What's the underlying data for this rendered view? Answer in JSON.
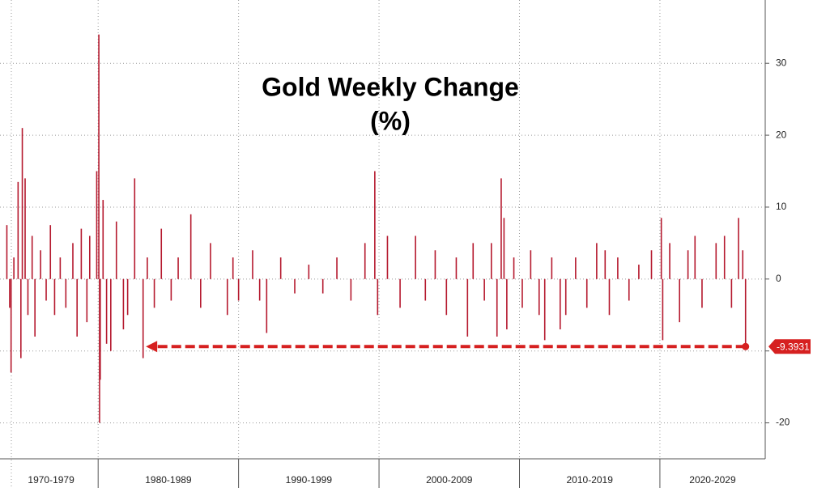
{
  "chart_data": {
    "type": "bar",
    "title": "Gold Weekly Change",
    "subtitle": "(%)",
    "x": [
      1973.5,
      1973.7,
      1973.8,
      1974.0,
      1974.3,
      1974.5,
      1974.6,
      1974.8,
      1975.0,
      1975.3,
      1975.5,
      1975.9,
      1976.3,
      1976.6,
      1976.9,
      1977.3,
      1977.7,
      1978.2,
      1978.5,
      1978.8,
      1979.2,
      1979.4,
      1979.9,
      1980.05,
      1980.1,
      1980.15,
      1980.35,
      1980.6,
      1980.9,
      1981.3,
      1981.8,
      1982.1,
      1982.6,
      1983.2,
      1983.5,
      1984.0,
      1984.5,
      1985.2,
      1985.7,
      1986.6,
      1987.3,
      1988.0,
      1989.2,
      1989.6,
      1990.0,
      1991.0,
      1991.5,
      1992.0,
      1993.0,
      1994.0,
      1995.0,
      1996.0,
      1997.0,
      1998.0,
      1999.0,
      1999.7,
      1999.9,
      2000.6,
      2001.5,
      2002.6,
      2003.3,
      2004.0,
      2004.8,
      2005.5,
      2006.3,
      2006.7,
      2007.5,
      2008.0,
      2008.4,
      2008.7,
      2008.9,
      2009.1,
      2009.6,
      2010.2,
      2010.8,
      2011.4,
      2011.8,
      2012.3,
      2012.9,
      2013.3,
      2014.0,
      2014.8,
      2015.5,
      2016.1,
      2016.4,
      2017.0,
      2017.8,
      2018.5,
      2019.4,
      2020.1,
      2020.2,
      2020.7,
      2021.4,
      2022.0,
      2022.5,
      2023.0,
      2024.0,
      2024.6,
      2025.1,
      2025.6,
      2025.9,
      2026.1
    ],
    "values": [
      7.5,
      -4,
      -13,
      3,
      13.5,
      -11,
      21,
      14,
      -5,
      6,
      -8,
      4,
      -3,
      7.5,
      -5,
      3,
      -4,
      5,
      -8,
      7,
      -6,
      6,
      15,
      34,
      -20,
      -14,
      11,
      -9,
      -10,
      8,
      -7,
      -5,
      14,
      -11,
      3,
      -4,
      7,
      -3,
      3,
      9,
      -4,
      5,
      -5,
      3,
      -3,
      4,
      -3,
      -7.5,
      3,
      -2,
      2,
      -2,
      3,
      -3,
      5,
      15,
      -5,
      6,
      -4,
      6,
      -3,
      4,
      -5,
      3,
      -8,
      5,
      -3,
      5,
      -8,
      14,
      8.5,
      -7,
      3,
      -4,
      4,
      -5,
      -8.5,
      3,
      -7,
      -5,
      3,
      -4,
      5,
      4,
      -5,
      3,
      -3,
      2,
      4,
      8.5,
      -8.5,
      5,
      -6,
      4,
      6,
      -4,
      5,
      6,
      -4,
      8.5,
      4,
      -9.3931
    ],
    "color": "#b5192e",
    "xlim": [
      1973.3,
      2027.5
    ],
    "xticks": [
      1980,
      1990,
      2000,
      2010,
      2020
    ],
    "x_band_labels": [
      "1970-1979",
      "1980-1989",
      "1990-1999",
      "2000-2009",
      "2010-2019",
      "2020-2029"
    ],
    "ylim": [
      -25,
      38.8
    ],
    "yticks": [
      -20,
      -10,
      0,
      10,
      20,
      30
    ],
    "grid": true,
    "last_value_label": "-9.3931",
    "arrow_to_x": 1983.4
  }
}
